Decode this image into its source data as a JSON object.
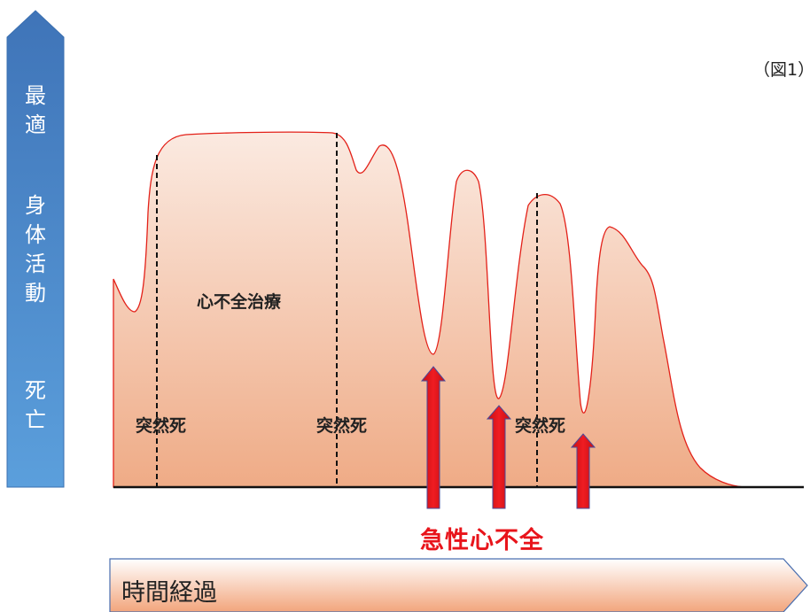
{
  "figure_label": "（図1）",
  "vertical_axis": {
    "top_label": "最適",
    "middle_label": "身体活動",
    "bottom_label": "死亡"
  },
  "horizontal_axis": {
    "label": "時間経過"
  },
  "annotations": {
    "treatment": "心不全治療",
    "sudden_death_1": "突然死",
    "sudden_death_2": "突然死",
    "sudden_death_3": "突然死",
    "acute_hf": "急性心不全"
  },
  "colors": {
    "axis_arrow_top": "#3f74b8",
    "axis_arrow_bottom": "#5a9bd5",
    "curve_stroke": "#e32119",
    "fill_light": "#fbe9df",
    "fill_dark": "#efb08e",
    "arrow_red": "#e8141b",
    "arrow_outline": "#4a4a9a"
  }
}
